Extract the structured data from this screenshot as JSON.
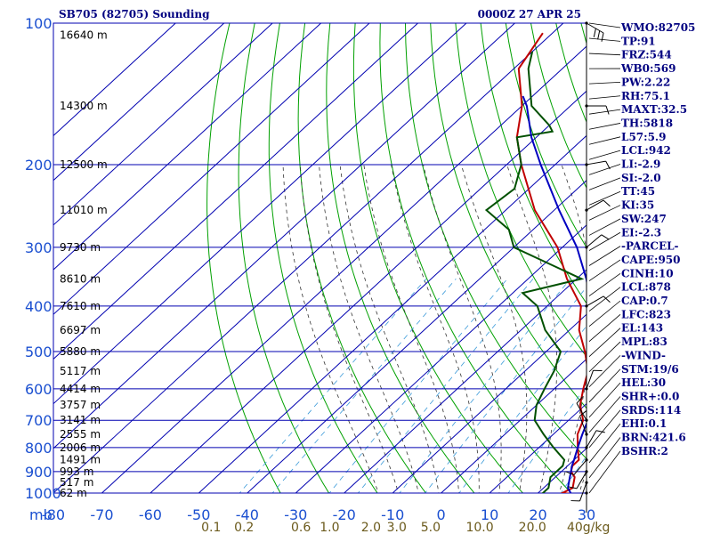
{
  "header": {
    "station": "SB705 (82705) Sounding",
    "datetime": "0000Z 27 APR 25"
  },
  "colors": {
    "isobar": "#0000b0",
    "isotherm": "#0000b0",
    "dry_adiabat": "#00a000",
    "moist_adiabat": "#333333",
    "mixing_ratio": "#3a9ad9",
    "temperature": "#c00000",
    "dewpoint": "#005000",
    "parcel": "#0000c0",
    "indices_text": "#000080",
    "axis_labels": "#1a4fd0",
    "mixing_labels": "#6b5a1c"
  },
  "pressure_unit": "mb",
  "temperature_unit_note": "",
  "mixing_ratio_unit": "g/kg",
  "chart_data": {
    "type": "line",
    "title": "SB705 (82705) Sounding",
    "subtitle": "0000Z 27 APR 25",
    "ylabel": "mb",
    "xlabel": "",
    "y_scale": "log",
    "ylim": [
      1000,
      100
    ],
    "xlim": [
      -80,
      30
    ],
    "pressure_ticks": [
      "100",
      "200",
      "300",
      "400",
      "500",
      "600",
      "700",
      "800",
      "900",
      "1000"
    ],
    "pressure_tick_values": [
      100,
      200,
      300,
      400,
      500,
      600,
      700,
      800,
      900,
      1000
    ],
    "temperature_ticks": [
      "-80",
      "-70",
      "-60",
      "-50",
      "-40",
      "-30",
      "-20",
      "-10",
      "0",
      "10",
      "20",
      "30"
    ],
    "temperature_tick_values": [
      -80,
      -70,
      -60,
      -50,
      -40,
      -30,
      -20,
      -10,
      0,
      10,
      20,
      30
    ],
    "mixing_ratio_labels": [
      "0.1",
      "0.2",
      "0.6",
      "1.0",
      "2.0",
      "3.0",
      "5.0",
      "10.0",
      "20.0",
      "40g/kg"
    ],
    "mixing_ratio_values": [
      0.1,
      0.2,
      0.6,
      1.0,
      2.0,
      3.0,
      5.0,
      10.0,
      20.0,
      40.0
    ],
    "height_labels": [
      {
        "p": 106,
        "text": "16640 m"
      },
      {
        "p": 150,
        "text": "14300 m"
      },
      {
        "p": 200,
        "text": "12500 m"
      },
      {
        "p": 250,
        "text": "11010 m"
      },
      {
        "p": 300,
        "text": "9730 m"
      },
      {
        "p": 350,
        "text": "8610 m"
      },
      {
        "p": 400,
        "text": "7610 m"
      },
      {
        "p": 450,
        "text": "6697 m"
      },
      {
        "p": 500,
        "text": "5880 m"
      },
      {
        "p": 550,
        "text": "5117 m"
      },
      {
        "p": 600,
        "text": "4414 m"
      },
      {
        "p": 650,
        "text": "3757 m"
      },
      {
        "p": 700,
        "text": "3141 m"
      },
      {
        "p": 750,
        "text": "2555 m"
      },
      {
        "p": 800,
        "text": "2006 m"
      },
      {
        "p": 850,
        "text": "1491 m"
      },
      {
        "p": 900,
        "text": "993 m"
      },
      {
        "p": 950,
        "text": "517 m"
      },
      {
        "p": 1000,
        "text": "62 m"
      }
    ],
    "series": [
      {
        "name": "temperature",
        "points": [
          [
            1004,
            27
          ],
          [
            1000,
            25
          ],
          [
            975,
            26
          ],
          [
            925,
            24
          ],
          [
            900,
            22
          ],
          [
            875,
            21
          ],
          [
            850,
            21
          ],
          [
            800,
            18
          ],
          [
            750,
            15
          ],
          [
            700,
            13
          ],
          [
            650,
            9
          ],
          [
            600,
            6
          ],
          [
            550,
            3
          ],
          [
            500,
            -2
          ],
          [
            450,
            -8
          ],
          [
            400,
            -13
          ],
          [
            350,
            -22
          ],
          [
            300,
            -31
          ],
          [
            250,
            -44
          ],
          [
            200,
            -57
          ],
          [
            175,
            -64
          ],
          [
            150,
            -70
          ],
          [
            125,
            -79
          ],
          [
            105,
            -82
          ]
        ]
      },
      {
        "name": "dewpoint",
        "points": [
          [
            1004,
            21
          ],
          [
            1000,
            21
          ],
          [
            975,
            21
          ],
          [
            925,
            19
          ],
          [
            900,
            19
          ],
          [
            875,
            19
          ],
          [
            850,
            18
          ],
          [
            800,
            13
          ],
          [
            750,
            8
          ],
          [
            700,
            3
          ],
          [
            650,
            0
          ],
          [
            600,
            -2
          ],
          [
            550,
            -4
          ],
          [
            500,
            -7
          ],
          [
            450,
            -15
          ],
          [
            400,
            -22
          ],
          [
            375,
            -28
          ],
          [
            350,
            -19
          ],
          [
            300,
            -40
          ],
          [
            275,
            -45
          ],
          [
            250,
            -54
          ],
          [
            225,
            -53
          ],
          [
            200,
            -57
          ],
          [
            175,
            -64
          ],
          [
            170,
            -58
          ],
          [
            165,
            -60
          ],
          [
            150,
            -68
          ],
          [
            125,
            -77
          ],
          [
            115,
            -80
          ]
        ]
      },
      {
        "name": "parcel",
        "points": [
          [
            1004,
            27
          ],
          [
            975,
            25
          ],
          [
            925,
            23
          ],
          [
            900,
            22
          ],
          [
            878,
            21
          ],
          [
            850,
            20
          ],
          [
            800,
            18
          ],
          [
            750,
            16
          ],
          [
            700,
            14
          ],
          [
            650,
            11
          ],
          [
            600,
            7
          ],
          [
            550,
            4
          ],
          [
            500,
            0
          ],
          [
            450,
            -5
          ],
          [
            400,
            -11
          ],
          [
            350,
            -18
          ],
          [
            300,
            -27
          ],
          [
            250,
            -39
          ],
          [
            200,
            -53
          ],
          [
            175,
            -61
          ],
          [
            150,
            -69
          ],
          [
            143,
            -72
          ]
        ]
      }
    ],
    "wind_barbs": [
      {
        "p": 1000,
        "dir": 180,
        "spd": 3
      },
      {
        "p": 950,
        "dir": 200,
        "spd": 10
      },
      {
        "p": 900,
        "dir": 210,
        "spd": 10
      },
      {
        "p": 850,
        "dir": 220,
        "spd": 10
      },
      {
        "p": 800,
        "dir": 30,
        "spd": 5
      },
      {
        "p": 750,
        "dir": 340,
        "spd": 10
      },
      {
        "p": 700,
        "dir": 330,
        "spd": 10
      },
      {
        "p": 600,
        "dir": 20,
        "spd": 10
      },
      {
        "p": 400,
        "dir": 60,
        "spd": 10
      },
      {
        "p": 300,
        "dir": 50,
        "spd": 10
      },
      {
        "p": 250,
        "dir": 60,
        "spd": 10
      },
      {
        "p": 200,
        "dir": 80,
        "spd": 10
      },
      {
        "p": 150,
        "dir": 90,
        "spd": 10
      },
      {
        "p": 100,
        "dir": 120,
        "spd": 30
      }
    ]
  },
  "indices": [
    "WMO:82705",
    "TP:91",
    "FRZ:544",
    "WB0:569",
    "PW:2.22",
    "RH:75.1",
    "MAXT:32.5",
    "TH:5818",
    "L57:5.9",
    "LCL:942",
    "LI:-2.9",
    "SI:-2.0",
    "TT:45",
    "KI:35",
    "SW:247",
    "EI:-2.3",
    "-PARCEL-",
    "CAPE:950",
    "CINH:10",
    "LCL:878",
    "CAP:0.7",
    "LFC:823",
    "EL:143",
    "MPL:83",
    "-WIND-",
    "STM:19/6",
    "HEL:30",
    "SHR+:0.0",
    "SRDS:114",
    "EHI:0.1",
    "BRN:421.6",
    "BSHR:2"
  ]
}
